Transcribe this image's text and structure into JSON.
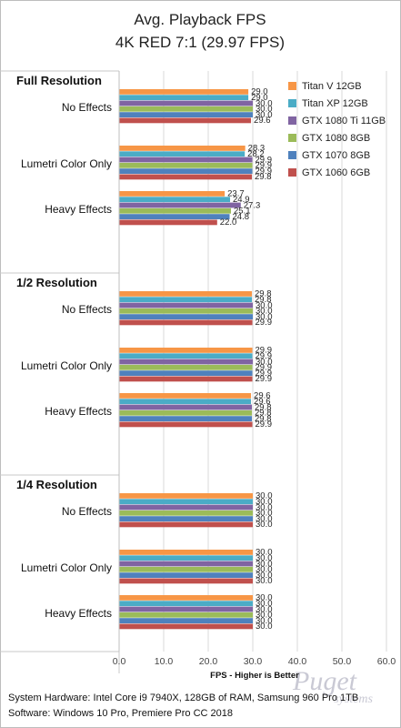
{
  "chart_data": {
    "type": "bar",
    "orientation": "horizontal",
    "title": "Avg. Playback FPS",
    "subtitle": "4K RED 7:1 (29.97 FPS)",
    "xlabel": "FPS - Higher is Better",
    "xlim": [
      0,
      60
    ],
    "xticks": [
      "0.0",
      "10.0",
      "20.0",
      "30.0",
      "40.0",
      "50.0",
      "60.0"
    ],
    "grid": true,
    "legend_position": "top-right",
    "series_names": [
      "Titan V 12GB",
      "Titan XP 12GB",
      "GTX 1080 Ti 11GB",
      "GTX 1080 8GB",
      "GTX 1070 8GB",
      "GTX 1060 6GB"
    ],
    "series_colors": [
      "#f79646",
      "#4bacc6",
      "#8064a2",
      "#9bbb59",
      "#4f81bd",
      "#c0504d"
    ],
    "groups": [
      {
        "name": "Full Resolution",
        "categories": [
          {
            "label": "No Effects",
            "values": [
              29.0,
              29.0,
              30.0,
              30.0,
              30.0,
              29.6
            ]
          },
          {
            "label": "Lumetri Color Only",
            "values": [
              28.3,
              28.2,
              29.9,
              29.9,
              29.9,
              29.8
            ]
          },
          {
            "label": "Heavy Effects",
            "values": [
              23.7,
              24.9,
              27.3,
              25.1,
              24.8,
              22.0
            ]
          }
        ]
      },
      {
        "name": "1/2 Resolution",
        "categories": [
          {
            "label": "No Effects",
            "values": [
              29.8,
              29.8,
              30.0,
              30.0,
              30.0,
              29.9
            ]
          },
          {
            "label": "Lumetri Color Only",
            "values": [
              29.9,
              29.9,
              30.0,
              29.9,
              29.9,
              29.9
            ]
          },
          {
            "label": "Heavy Effects",
            "values": [
              29.6,
              29.6,
              29.8,
              29.8,
              29.8,
              29.9
            ]
          }
        ]
      },
      {
        "name": "1/4 Resolution",
        "categories": [
          {
            "label": "No Effects",
            "values": [
              30.0,
              30.0,
              30.0,
              30.0,
              30.0,
              30.0
            ]
          },
          {
            "label": "Lumetri Color Only",
            "values": [
              30.0,
              30.0,
              30.0,
              30.0,
              30.0,
              30.0
            ]
          },
          {
            "label": "Heavy Effects",
            "values": [
              30.0,
              30.0,
              30.0,
              30.0,
              30.0,
              30.0
            ]
          }
        ]
      }
    ]
  },
  "footer": {
    "line1": "System Hardware:  Intel Core i9 7940X, 128GB of RAM, Samsung 960 Pro 1TB",
    "line2": "Software: Windows 10 Pro, Premiere Pro CC 2018"
  },
  "logo": {
    "word1": "Puget",
    "word2": "systems"
  }
}
